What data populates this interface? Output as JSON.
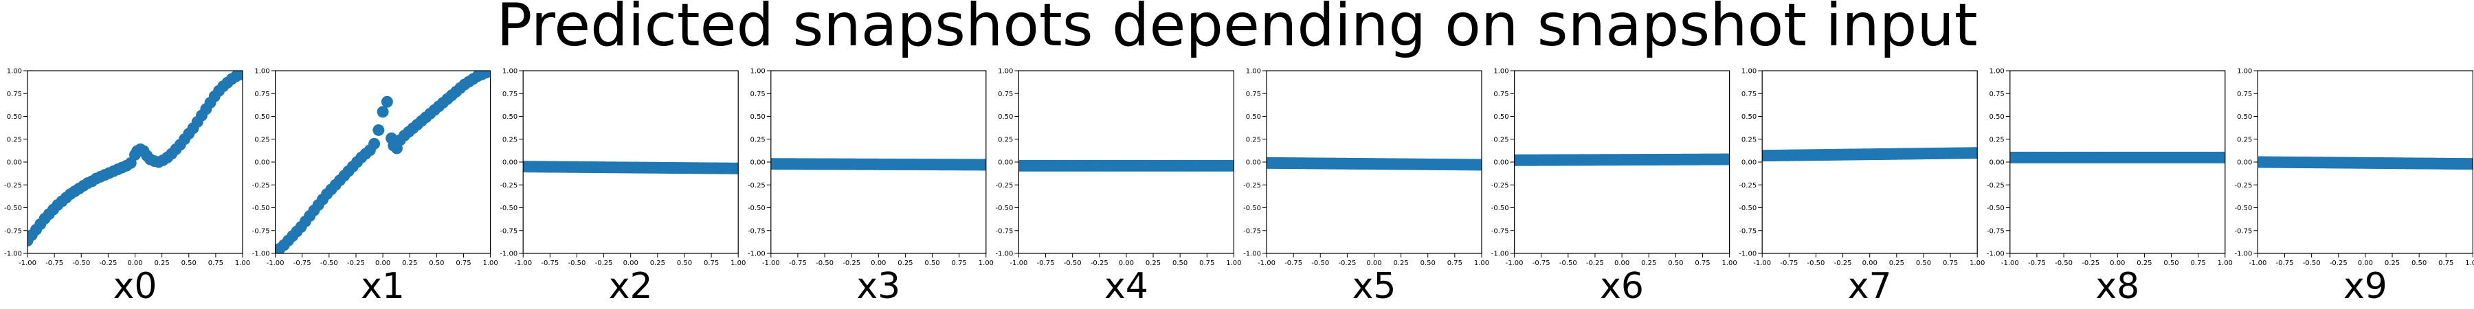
{
  "figure": {
    "title": "Predicted snapshots depending on snapshot input"
  },
  "chart_data": [
    {
      "type": "scatter",
      "xlabel": "x0",
      "xlim": [
        -1,
        1
      ],
      "ylim": [
        -1,
        1
      ],
      "xticks": [
        "-1.00",
        "-0.75",
        "-0.50",
        "-0.25",
        "0.00",
        "0.25",
        "0.50",
        "0.75",
        "1.00"
      ],
      "yticks": [
        "-1.00",
        "-0.75",
        "-0.50",
        "-0.25",
        "0.00",
        "0.25",
        "0.50",
        "0.75",
        "1.00"
      ],
      "color": "#1f77b4",
      "points": [
        [
          -1.0,
          -0.86
        ],
        [
          -0.96,
          -0.8
        ],
        [
          -0.92,
          -0.74
        ],
        [
          -0.88,
          -0.68
        ],
        [
          -0.84,
          -0.62
        ],
        [
          -0.8,
          -0.57
        ],
        [
          -0.76,
          -0.52
        ],
        [
          -0.72,
          -0.47
        ],
        [
          -0.68,
          -0.43
        ],
        [
          -0.64,
          -0.39
        ],
        [
          -0.6,
          -0.35
        ],
        [
          -0.56,
          -0.32
        ],
        [
          -0.52,
          -0.29
        ],
        [
          -0.48,
          -0.26
        ],
        [
          -0.44,
          -0.23
        ],
        [
          -0.4,
          -0.21
        ],
        [
          -0.36,
          -0.18
        ],
        [
          -0.32,
          -0.16
        ],
        [
          -0.28,
          -0.14
        ],
        [
          -0.24,
          -0.12
        ],
        [
          -0.2,
          -0.1
        ],
        [
          -0.16,
          -0.08
        ],
        [
          -0.12,
          -0.06
        ],
        [
          -0.08,
          -0.04
        ],
        [
          -0.04,
          -0.01
        ],
        [
          0.0,
          0.08
        ],
        [
          0.02,
          0.12
        ],
        [
          0.05,
          0.14
        ],
        [
          0.08,
          0.12
        ],
        [
          0.11,
          0.07
        ],
        [
          0.14,
          0.03
        ],
        [
          0.18,
          0.01
        ],
        [
          0.22,
          0.0
        ],
        [
          0.26,
          0.02
        ],
        [
          0.3,
          0.05
        ],
        [
          0.34,
          0.09
        ],
        [
          0.38,
          0.14
        ],
        [
          0.42,
          0.19
        ],
        [
          0.46,
          0.25
        ],
        [
          0.5,
          0.31
        ],
        [
          0.54,
          0.37
        ],
        [
          0.58,
          0.44
        ],
        [
          0.62,
          0.51
        ],
        [
          0.66,
          0.58
        ],
        [
          0.7,
          0.65
        ],
        [
          0.74,
          0.72
        ],
        [
          0.78,
          0.78
        ],
        [
          0.82,
          0.83
        ],
        [
          0.86,
          0.87
        ],
        [
          0.9,
          0.91
        ],
        [
          0.94,
          0.94
        ],
        [
          0.98,
          0.96
        ],
        [
          1.0,
          0.97
        ]
      ]
    },
    {
      "type": "scatter",
      "xlabel": "x1",
      "xlim": [
        -1,
        1
      ],
      "ylim": [
        -1,
        1
      ],
      "xticks": [
        "-1.00",
        "-0.75",
        "-0.50",
        "-0.25",
        "0.00",
        "0.25",
        "0.50",
        "0.75",
        "1.00"
      ],
      "yticks": [
        "-1.00",
        "-0.75",
        "-0.50",
        "-0.25",
        "0.00",
        "0.25",
        "0.50",
        "0.75",
        "1.00"
      ],
      "color": "#1f77b4",
      "points": [
        [
          -1.0,
          -0.99
        ],
        [
          -0.96,
          -0.95
        ],
        [
          -0.92,
          -0.91
        ],
        [
          -0.88,
          -0.86
        ],
        [
          -0.84,
          -0.81
        ],
        [
          -0.8,
          -0.76
        ],
        [
          -0.76,
          -0.71
        ],
        [
          -0.72,
          -0.65
        ],
        [
          -0.68,
          -0.59
        ],
        [
          -0.64,
          -0.53
        ],
        [
          -0.6,
          -0.47
        ],
        [
          -0.56,
          -0.41
        ],
        [
          -0.52,
          -0.35
        ],
        [
          -0.48,
          -0.3
        ],
        [
          -0.44,
          -0.25
        ],
        [
          -0.4,
          -0.2
        ],
        [
          -0.36,
          -0.15
        ],
        [
          -0.32,
          -0.1
        ],
        [
          -0.28,
          -0.05
        ],
        [
          -0.24,
          0.0
        ],
        [
          -0.2,
          0.05
        ],
        [
          -0.16,
          0.09
        ],
        [
          -0.12,
          0.13
        ],
        [
          -0.08,
          0.2
        ],
        [
          -0.04,
          0.35
        ],
        [
          0.0,
          0.55
        ],
        [
          0.04,
          0.66
        ],
        [
          0.08,
          0.26
        ],
        [
          0.1,
          0.18
        ],
        [
          0.13,
          0.15
        ],
        [
          0.16,
          0.24
        ],
        [
          0.2,
          0.29
        ],
        [
          0.24,
          0.33
        ],
        [
          0.28,
          0.37
        ],
        [
          0.32,
          0.41
        ],
        [
          0.36,
          0.45
        ],
        [
          0.4,
          0.49
        ],
        [
          0.44,
          0.53
        ],
        [
          0.48,
          0.57
        ],
        [
          0.52,
          0.61
        ],
        [
          0.56,
          0.65
        ],
        [
          0.6,
          0.69
        ],
        [
          0.64,
          0.73
        ],
        [
          0.68,
          0.77
        ],
        [
          0.72,
          0.81
        ],
        [
          0.76,
          0.85
        ],
        [
          0.8,
          0.88
        ],
        [
          0.84,
          0.91
        ],
        [
          0.88,
          0.94
        ],
        [
          0.92,
          0.96
        ],
        [
          0.96,
          0.98
        ],
        [
          1.0,
          0.99
        ]
      ]
    },
    {
      "type": "scatter",
      "xlabel": "x2",
      "xlim": [
        -1,
        1
      ],
      "ylim": [
        -1,
        1
      ],
      "xticks": [
        "-1.00",
        "-0.75",
        "-0.50",
        "-0.25",
        "0.00",
        "0.25",
        "0.50",
        "0.75",
        "1.00"
      ],
      "yticks": [
        "-1.00",
        "-0.75",
        "-0.50",
        "-0.25",
        "0.00",
        "0.25",
        "0.50",
        "0.75",
        "1.00"
      ],
      "color": "#1f77b4",
      "line": {
        "y_start": -0.05,
        "y_end": -0.07,
        "count": 101
      }
    },
    {
      "type": "scatter",
      "xlabel": "x3",
      "xlim": [
        -1,
        1
      ],
      "ylim": [
        -1,
        1
      ],
      "xticks": [
        "-1.00",
        "-0.75",
        "-0.50",
        "-0.25",
        "0.00",
        "0.25",
        "0.50",
        "0.75",
        "1.00"
      ],
      "yticks": [
        "-1.00",
        "-0.75",
        "-0.50",
        "-0.25",
        "0.00",
        "0.25",
        "0.50",
        "0.75",
        "1.00"
      ],
      "color": "#1f77b4",
      "line": {
        "y_start": -0.02,
        "y_end": -0.03,
        "count": 101
      }
    },
    {
      "type": "scatter",
      "xlabel": "x4",
      "xlim": [
        -1,
        1
      ],
      "ylim": [
        -1,
        1
      ],
      "xticks": [
        "-1.00",
        "-0.75",
        "-0.50",
        "-0.25",
        "0.00",
        "0.25",
        "0.50",
        "0.75",
        "1.00"
      ],
      "yticks": [
        "-1.00",
        "-0.75",
        "-0.50",
        "-0.25",
        "0.00",
        "0.25",
        "0.50",
        "0.75",
        "1.00"
      ],
      "color": "#1f77b4",
      "line": {
        "y_start": -0.04,
        "y_end": -0.04,
        "count": 101
      }
    },
    {
      "type": "scatter",
      "xlabel": "x5",
      "xlim": [
        -1,
        1
      ],
      "ylim": [
        -1,
        1
      ],
      "xticks": [
        "-1.00",
        "-0.75",
        "-0.50",
        "-0.25",
        "0.00",
        "0.25",
        "0.50",
        "0.75",
        "1.00"
      ],
      "yticks": [
        "-1.00",
        "-0.75",
        "-0.50",
        "-0.25",
        "0.00",
        "0.25",
        "0.50",
        "0.75",
        "1.00"
      ],
      "color": "#1f77b4",
      "line": {
        "y_start": -0.01,
        "y_end": -0.03,
        "count": 101
      }
    },
    {
      "type": "scatter",
      "xlabel": "x6",
      "xlim": [
        -1,
        1
      ],
      "ylim": [
        -1,
        1
      ],
      "xticks": [
        "-1.00",
        "-0.75",
        "-0.50",
        "-0.25",
        "0.00",
        "0.25",
        "0.50",
        "0.75",
        "1.00"
      ],
      "yticks": [
        "-1.00",
        "-0.75",
        "-0.50",
        "-0.25",
        "0.00",
        "0.25",
        "0.50",
        "0.75",
        "1.00"
      ],
      "color": "#1f77b4",
      "line": {
        "y_start": 0.02,
        "y_end": 0.03,
        "count": 101
      }
    },
    {
      "type": "scatter",
      "xlabel": "x7",
      "xlim": [
        -1,
        1
      ],
      "ylim": [
        -1,
        1
      ],
      "xticks": [
        "-1.00",
        "-0.75",
        "-0.50",
        "-0.25",
        "0.00",
        "0.25",
        "0.50",
        "0.75",
        "1.00"
      ],
      "yticks": [
        "-1.00",
        "-0.75",
        "-0.50",
        "-0.25",
        "0.00",
        "0.25",
        "0.50",
        "0.75",
        "1.00"
      ],
      "color": "#1f77b4",
      "line": {
        "y_start": 0.07,
        "y_end": 0.1,
        "count": 101
      }
    },
    {
      "type": "scatter",
      "xlabel": "x8",
      "xlim": [
        -1,
        1
      ],
      "ylim": [
        -1,
        1
      ],
      "xticks": [
        "-1.00",
        "-0.75",
        "-0.50",
        "-0.25",
        "0.00",
        "0.25",
        "0.50",
        "0.75",
        "1.00"
      ],
      "yticks": [
        "-1.00",
        "-0.75",
        "-0.50",
        "-0.25",
        "0.00",
        "0.25",
        "0.50",
        "0.75",
        "1.00"
      ],
      "color": "#1f77b4",
      "line": {
        "y_start": 0.05,
        "y_end": 0.05,
        "count": 101
      }
    },
    {
      "type": "scatter",
      "xlabel": "x9",
      "xlim": [
        -1,
        1
      ],
      "ylim": [
        -1,
        1
      ],
      "xticks": [
        "-1.00",
        "-0.75",
        "-0.50",
        "-0.25",
        "0.00",
        "0.25",
        "0.50",
        "0.75",
        "1.00"
      ],
      "yticks": [
        "-1.00",
        "-0.75",
        "-0.50",
        "-0.25",
        "0.00",
        "0.25",
        "0.50",
        "0.75",
        "1.00"
      ],
      "color": "#1f77b4",
      "line": {
        "y_start": 0.0,
        "y_end": -0.02,
        "count": 101
      }
    }
  ]
}
